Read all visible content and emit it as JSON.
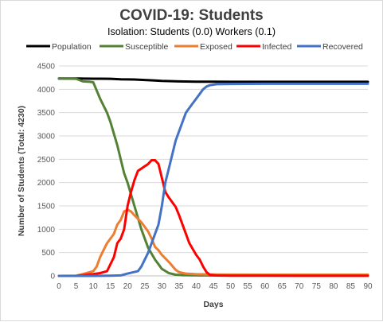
{
  "chart_data": {
    "type": "line",
    "title": "COVID-19: Students",
    "subtitle": "Isolation: Students (0.0) Workers (0.1)",
    "xlabel": "Days",
    "ylabel": "Number of Students (Total: 4230)",
    "xlim": [
      0,
      90
    ],
    "ylim": [
      0,
      4500
    ],
    "xticks": [
      0,
      5,
      10,
      15,
      20,
      25,
      30,
      35,
      40,
      45,
      50,
      55,
      60,
      65,
      70,
      75,
      80,
      85,
      90
    ],
    "yticks": [
      0,
      500,
      1000,
      1500,
      2000,
      2500,
      3000,
      3500,
      4000,
      4500
    ],
    "grid": "horizontal",
    "legend": "top",
    "series": [
      {
        "name": "Population",
        "color": "#000000",
        "points": [
          [
            0,
            4230
          ],
          [
            5,
            4230
          ],
          [
            10,
            4228
          ],
          [
            15,
            4225
          ],
          [
            18,
            4215
          ],
          [
            22,
            4210
          ],
          [
            25,
            4200
          ],
          [
            28,
            4190
          ],
          [
            30,
            4180
          ],
          [
            35,
            4170
          ],
          [
            40,
            4165
          ],
          [
            45,
            4162
          ],
          [
            50,
            4160
          ],
          [
            60,
            4160
          ],
          [
            70,
            4160
          ],
          [
            80,
            4160
          ],
          [
            90,
            4160
          ]
        ]
      },
      {
        "name": "Susceptible",
        "color": "#548235",
        "points": [
          [
            0,
            4230
          ],
          [
            5,
            4225
          ],
          [
            7,
            4170
          ],
          [
            9,
            4160
          ],
          [
            10,
            4150
          ],
          [
            12,
            3800
          ],
          [
            14,
            3500
          ],
          [
            15,
            3300
          ],
          [
            17,
            2800
          ],
          [
            18,
            2500
          ],
          [
            19,
            2200
          ],
          [
            20,
            2000
          ],
          [
            22,
            1500
          ],
          [
            24,
            1000
          ],
          [
            26,
            600
          ],
          [
            28,
            350
          ],
          [
            29,
            250
          ],
          [
            30,
            150
          ],
          [
            32,
            60
          ],
          [
            34,
            25
          ],
          [
            36,
            15
          ],
          [
            40,
            10
          ],
          [
            45,
            8
          ],
          [
            50,
            7
          ],
          [
            60,
            6
          ],
          [
            70,
            5
          ],
          [
            90,
            5
          ]
        ]
      },
      {
        "name": "Exposed",
        "color": "#ed7d31",
        "points": [
          [
            0,
            0
          ],
          [
            5,
            5
          ],
          [
            7,
            40
          ],
          [
            9,
            80
          ],
          [
            10,
            100
          ],
          [
            11,
            200
          ],
          [
            12,
            400
          ],
          [
            13,
            550
          ],
          [
            14,
            700
          ],
          [
            15,
            800
          ],
          [
            16,
            900
          ],
          [
            17,
            1100
          ],
          [
            18,
            1200
          ],
          [
            19,
            1380
          ],
          [
            20,
            1420
          ],
          [
            21,
            1380
          ],
          [
            22,
            1300
          ],
          [
            24,
            1150
          ],
          [
            26,
            950
          ],
          [
            27,
            800
          ],
          [
            28,
            620
          ],
          [
            29,
            550
          ],
          [
            30,
            450
          ],
          [
            32,
            300
          ],
          [
            34,
            130
          ],
          [
            35,
            80
          ],
          [
            37,
            50
          ],
          [
            40,
            35
          ],
          [
            45,
            30
          ],
          [
            50,
            28
          ],
          [
            60,
            25
          ],
          [
            70,
            25
          ],
          [
            80,
            25
          ],
          [
            90,
            25
          ]
        ]
      },
      {
        "name": "Infected",
        "color": "#ff0000",
        "points": [
          [
            0,
            0
          ],
          [
            5,
            0
          ],
          [
            10,
            40
          ],
          [
            12,
            60
          ],
          [
            14,
            100
          ],
          [
            16,
            400
          ],
          [
            17,
            700
          ],
          [
            18,
            800
          ],
          [
            19,
            1000
          ],
          [
            20,
            1500
          ],
          [
            21,
            1800
          ],
          [
            22,
            2050
          ],
          [
            23,
            2250
          ],
          [
            25,
            2350
          ],
          [
            26,
            2400
          ],
          [
            27,
            2480
          ],
          [
            28,
            2480
          ],
          [
            29,
            2400
          ],
          [
            30,
            2100
          ],
          [
            31,
            1800
          ],
          [
            32,
            1680
          ],
          [
            34,
            1480
          ],
          [
            35,
            1300
          ],
          [
            37,
            900
          ],
          [
            38,
            700
          ],
          [
            40,
            450
          ],
          [
            41,
            350
          ],
          [
            42,
            200
          ],
          [
            43,
            80
          ],
          [
            44,
            20
          ],
          [
            46,
            8
          ],
          [
            50,
            5
          ],
          [
            60,
            3
          ],
          [
            70,
            2
          ],
          [
            90,
            2
          ]
        ]
      },
      {
        "name": "Recovered",
        "color": "#4472c4",
        "points": [
          [
            0,
            0
          ],
          [
            10,
            0
          ],
          [
            15,
            5
          ],
          [
            18,
            10
          ],
          [
            20,
            50
          ],
          [
            23,
            100
          ],
          [
            24,
            200
          ],
          [
            26,
            500
          ],
          [
            28,
            900
          ],
          [
            29,
            1100
          ],
          [
            30,
            1500
          ],
          [
            31,
            2000
          ],
          [
            32,
            2300
          ],
          [
            33,
            2600
          ],
          [
            34,
            2900
          ],
          [
            35,
            3100
          ],
          [
            36,
            3300
          ],
          [
            37,
            3500
          ],
          [
            38,
            3600
          ],
          [
            39,
            3700
          ],
          [
            40,
            3800
          ],
          [
            41,
            3900
          ],
          [
            42,
            4000
          ],
          [
            43,
            4060
          ],
          [
            44,
            4090
          ],
          [
            46,
            4110
          ],
          [
            50,
            4115
          ],
          [
            60,
            4118
          ],
          [
            70,
            4118
          ],
          [
            80,
            4118
          ],
          [
            90,
            4118
          ]
        ]
      }
    ]
  }
}
